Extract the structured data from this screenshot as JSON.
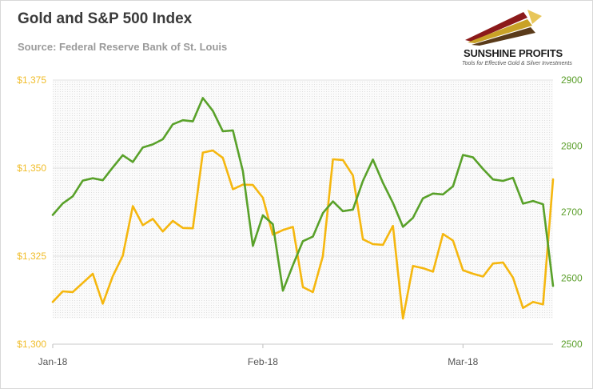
{
  "header": {
    "title": "Gold and S&P 500 Index",
    "subtitle": "Source: Federal Reserve Bank of St. Louis"
  },
  "logo": {
    "name": "SUNSHINE PROFITS",
    "tagline": "Tools for Effective Gold & Silver Investments",
    "colors": [
      "#8b1a1a",
      "#c9a227",
      "#5a3b1a"
    ]
  },
  "chart_data": {
    "type": "line",
    "title": "Gold and S&P 500 Index",
    "subtitle": "Source: Federal Reserve Bank of St. Louis",
    "x_tick_labels": [
      {
        "label": "Jan-18",
        "index": 0
      },
      {
        "label": "Feb-18",
        "index": 21
      },
      {
        "label": "Mar-18",
        "index": 41
      }
    ],
    "y_left": {
      "min": 1300,
      "max": 1375,
      "ticks": [
        "$1,300",
        "$1,325",
        "$1,350",
        "$1,375"
      ],
      "color": "#f0bd2a"
    },
    "y_right": {
      "min": 2500,
      "max": 2900,
      "ticks": [
        "2500",
        "2600",
        "2700",
        "2800",
        "2900"
      ],
      "color": "#5a9e2a"
    },
    "series": [
      {
        "name": "Gold",
        "axis": "left",
        "color": "#f5b70f",
        "values": [
          1312.0,
          1315.0,
          1314.8,
          1317.4,
          1320.0,
          1311.5,
          1319.3,
          1325.1,
          1339.2,
          1333.8,
          1335.6,
          1332.0,
          1335.0,
          1333.0,
          1332.9,
          1354.4,
          1355.0,
          1352.9,
          1344.0,
          1345.3,
          1345.2,
          1341.6,
          1331.1,
          1332.4,
          1333.3,
          1316.2,
          1314.8,
          1325.0,
          1352.5,
          1352.3,
          1347.9,
          1329.8,
          1328.4,
          1328.2,
          1333.6,
          1307.3,
          1322.2,
          1321.6,
          1320.6,
          1331.3,
          1329.4,
          1321.0,
          1320.0,
          1319.2,
          1322.9,
          1323.2,
          1318.9,
          1310.3,
          1312.0,
          1311.3,
          1346.8
        ]
      },
      {
        "name": "S&P 500",
        "axis": "right",
        "color": "#59a12a",
        "values": [
          2695.8,
          2713.1,
          2723.9,
          2747.7,
          2751.3,
          2748.2,
          2767.6,
          2786.2,
          2775.9,
          2798.0,
          2802.6,
          2810.3,
          2832.97,
          2839.1,
          2837.5,
          2872.9,
          2853.5,
          2822.4,
          2823.8,
          2762.1,
          2648.9,
          2695.1,
          2681.7,
          2581.0,
          2619.6,
          2656.0,
          2662.9,
          2698.6,
          2716.3,
          2701.3,
          2703.9,
          2747.3,
          2779.6,
          2744.3,
          2713.8,
          2677.7,
          2691.3,
          2720.9,
          2728.1,
          2726.8,
          2738.97,
          2786.6,
          2783.0,
          2765.3,
          2749.5,
          2747.3,
          2752.0,
          2712.9,
          2716.9,
          2711.9,
          2588.3
        ]
      }
    ],
    "grid": "left y-axis gridlines",
    "legend": "none"
  }
}
